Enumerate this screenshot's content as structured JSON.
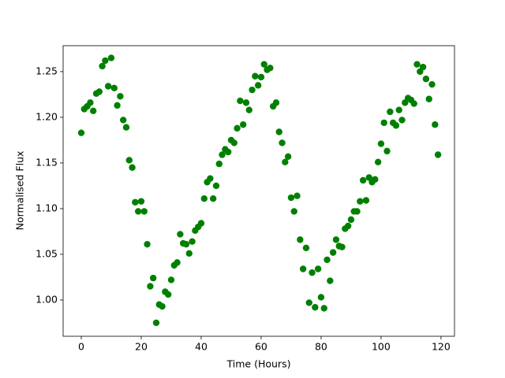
{
  "chart_data": {
    "type": "scatter",
    "xlabel": "Time (Hours)",
    "ylabel": "Normalised Flux",
    "x": [
      0,
      1,
      2,
      3,
      4,
      5,
      6,
      7,
      8,
      9,
      10,
      11,
      12,
      13,
      14,
      15,
      16,
      17,
      18,
      19,
      20,
      21,
      22,
      23,
      24,
      25,
      26,
      27,
      28,
      29,
      30,
      31,
      32,
      33,
      34,
      35,
      36,
      37,
      38,
      39,
      40,
      41,
      42,
      43,
      44,
      45,
      46,
      47,
      48,
      49,
      50,
      51,
      52,
      53,
      54,
      55,
      56,
      57,
      58,
      59,
      60,
      61,
      62,
      63,
      64,
      65,
      66,
      67,
      68,
      69,
      70,
      71,
      72,
      73,
      74,
      75,
      76,
      77,
      78,
      79,
      80,
      81,
      82,
      83,
      84,
      85,
      86,
      87,
      88,
      89,
      90,
      91,
      92,
      93,
      94,
      95,
      96,
      97,
      98,
      99,
      100,
      101,
      102,
      103,
      104,
      105,
      106,
      107,
      108,
      109,
      110,
      111,
      112,
      113,
      114,
      115,
      116,
      117,
      118,
      119
    ],
    "series": [
      {
        "color": "#008000",
        "values": [
          1.183,
          1.209,
          1.212,
          1.216,
          1.207,
          1.226,
          1.228,
          1.256,
          1.262,
          1.234,
          1.265,
          1.232,
          1.213,
          1.223,
          1.197,
          1.189,
          1.153,
          1.145,
          1.107,
          1.097,
          1.108,
          1.097,
          1.061,
          1.015,
          1.024,
          0.975,
          0.995,
          0.993,
          1.009,
          1.006,
          1.022,
          1.038,
          1.041,
          1.072,
          1.062,
          1.061,
          1.051,
          1.064,
          1.076,
          1.08,
          1.084,
          1.111,
          1.129,
          1.133,
          1.111,
          1.125,
          1.149,
          1.159,
          1.165,
          1.162,
          1.175,
          1.172,
          1.188,
          1.218,
          1.192,
          1.216,
          1.208,
          1.23,
          1.245,
          1.235,
          1.244,
          1.258,
          1.252,
          1.254,
          1.212,
          1.216,
          1.184,
          1.172,
          1.151,
          1.157,
          1.112,
          1.097,
          1.114,
          1.066,
          1.034,
          1.057,
          0.997,
          1.03,
          0.992,
          1.034,
          1.003,
          0.991,
          1.044,
          1.021,
          1.052,
          1.066,
          1.059,
          1.058,
          1.078,
          1.081,
          1.088,
          1.097,
          1.097,
          1.108,
          1.131,
          1.109,
          1.134,
          1.129,
          1.132,
          1.151,
          1.171,
          1.194,
          1.163,
          1.206,
          1.194,
          1.191,
          1.208,
          1.197,
          1.216,
          1.221,
          1.219,
          1.215,
          1.258,
          1.25,
          1.255,
          1.242,
          1.22,
          1.236,
          1.192,
          1.159
        ]
      }
    ],
    "xlim": [
      -6.05,
      124.5
    ],
    "ylim": [
      0.9603,
      1.2784
    ],
    "xticks": [
      0,
      20,
      40,
      60,
      80,
      100,
      120
    ],
    "yticks": [
      {
        "value": 1.0,
        "label": "1.00"
      },
      {
        "value": 1.05,
        "label": "1.05"
      },
      {
        "value": 1.1,
        "label": "1.10"
      },
      {
        "value": 1.15,
        "label": "1.15"
      },
      {
        "value": 1.2,
        "label": "1.20"
      },
      {
        "value": 1.25,
        "label": "1.25"
      }
    ],
    "grid": false
  }
}
